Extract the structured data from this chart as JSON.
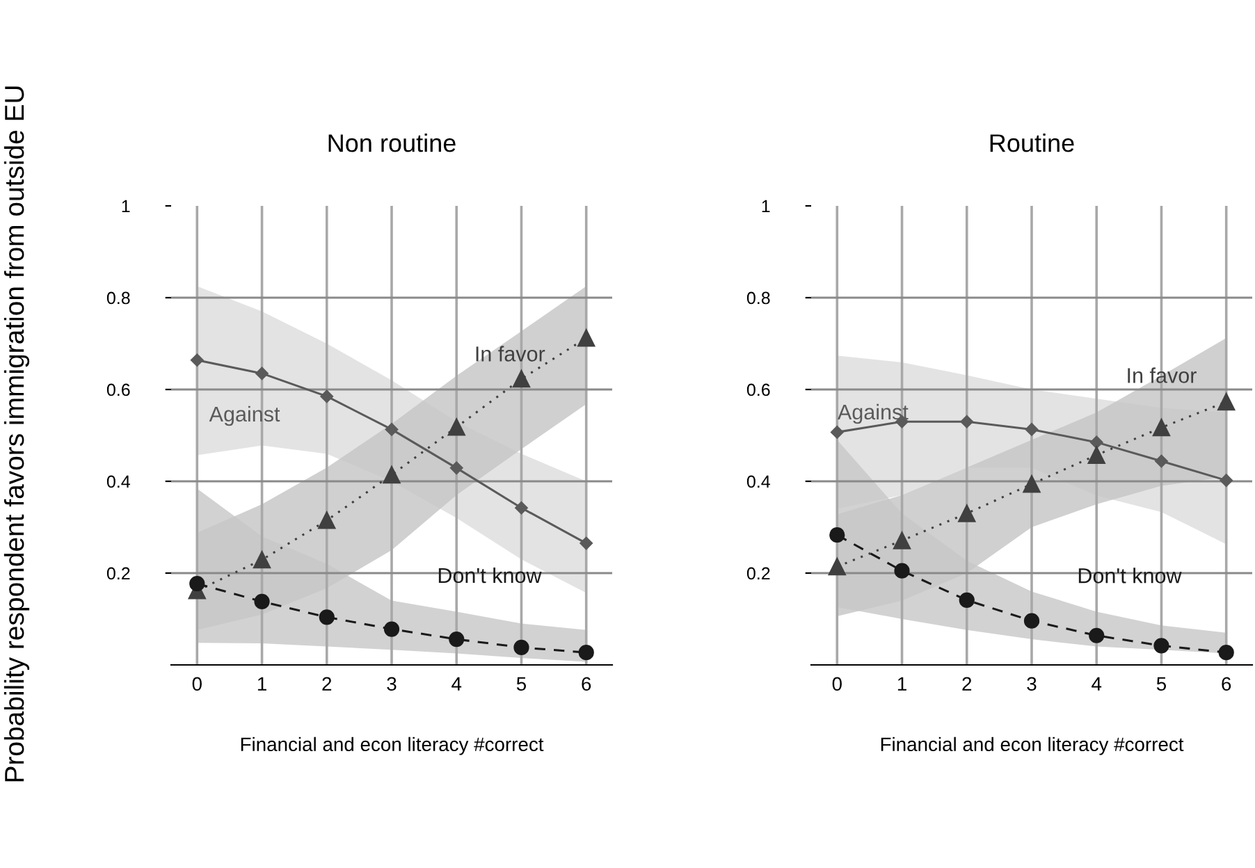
{
  "chart_data": [
    {
      "type": "line",
      "title": "Non routine",
      "xlabel": "Financial and econ literacy #correct",
      "ylabel": "Probability respondent favors immigration from outside EU",
      "x": [
        0,
        1,
        2,
        3,
        4,
        5,
        6
      ],
      "xlim": [
        -0.4,
        6.4
      ],
      "xticks": [
        0,
        1,
        2,
        3,
        4,
        5,
        6
      ],
      "ylim": [
        0,
        1
      ],
      "yticks": [
        0.2,
        0.4,
        0.6,
        0.8,
        1
      ],
      "grid": true,
      "series": [
        {
          "name": "Against",
          "color": "#5a5a5a",
          "marker": "diamond",
          "line_style": "solid",
          "values": [
            0.664,
            0.635,
            0.585,
            0.513,
            0.429,
            0.342,
            0.265
          ],
          "lower": [
            0.457,
            0.478,
            0.46,
            0.4,
            0.32,
            0.23,
            0.157
          ],
          "upper": [
            0.825,
            0.77,
            0.7,
            0.62,
            0.53,
            0.46,
            0.4
          ]
        },
        {
          "name": "In favor",
          "color": "#404040",
          "marker": "triangle",
          "line_style": "dotted",
          "values": [
            0.162,
            0.229,
            0.315,
            0.414,
            0.518,
            0.623,
            0.712
          ],
          "lower": [
            0.076,
            0.11,
            0.167,
            0.25,
            0.37,
            0.47,
            0.568
          ],
          "upper": [
            0.288,
            0.35,
            0.43,
            0.525,
            0.63,
            0.727,
            0.825
          ]
        },
        {
          "name": "Don't know",
          "color": "#1a1a1a",
          "marker": "circle",
          "line_style": "dashed",
          "values": [
            0.177,
            0.138,
            0.104,
            0.078,
            0.056,
            0.038,
            0.027
          ],
          "lower": [
            0.048,
            0.047,
            0.04,
            0.033,
            0.025,
            0.015,
            0.007
          ],
          "upper": [
            0.384,
            0.28,
            0.22,
            0.14,
            0.116,
            0.09,
            0.076
          ]
        }
      ]
    },
    {
      "type": "line",
      "title": "Routine",
      "xlabel": "Financial and econ literacy #correct",
      "x": [
        0,
        1,
        2,
        3,
        4,
        5,
        6
      ],
      "xlim": [
        -0.4,
        6.4
      ],
      "xticks": [
        0,
        1,
        2,
        3,
        4,
        5,
        6
      ],
      "ylim": [
        0,
        1
      ],
      "yticks": [
        0.2,
        0.4,
        0.6,
        0.8,
        1
      ],
      "grid": true,
      "series": [
        {
          "name": "Against",
          "color": "#5a5a5a",
          "marker": "diamond",
          "line_style": "solid",
          "values": [
            0.507,
            0.53,
            0.53,
            0.513,
            0.485,
            0.444,
            0.402
          ],
          "lower": [
            0.34,
            0.37,
            0.43,
            0.43,
            0.369,
            0.333,
            0.263
          ],
          "upper": [
            0.674,
            0.659,
            0.631,
            0.6,
            0.58,
            0.56,
            0.55
          ]
        },
        {
          "name": "In favor",
          "color": "#404040",
          "marker": "triangle",
          "line_style": "dotted",
          "values": [
            0.214,
            0.271,
            0.33,
            0.394,
            0.457,
            0.517,
            0.573
          ],
          "lower": [
            0.106,
            0.14,
            0.2,
            0.3,
            0.35,
            0.39,
            0.41
          ],
          "upper": [
            0.328,
            0.37,
            0.43,
            0.49,
            0.55,
            0.63,
            0.712
          ]
        },
        {
          "name": "Don't know",
          "color": "#1a1a1a",
          "marker": "circle",
          "line_style": "dashed",
          "values": [
            0.283,
            0.205,
            0.141,
            0.096,
            0.064,
            0.042,
            0.027
          ],
          "lower": [
            0.126,
            0.1,
            0.076,
            0.056,
            0.04,
            0.033,
            0.025
          ],
          "upper": [
            0.49,
            0.33,
            0.227,
            0.16,
            0.116,
            0.086,
            0.07
          ]
        }
      ]
    }
  ]
}
